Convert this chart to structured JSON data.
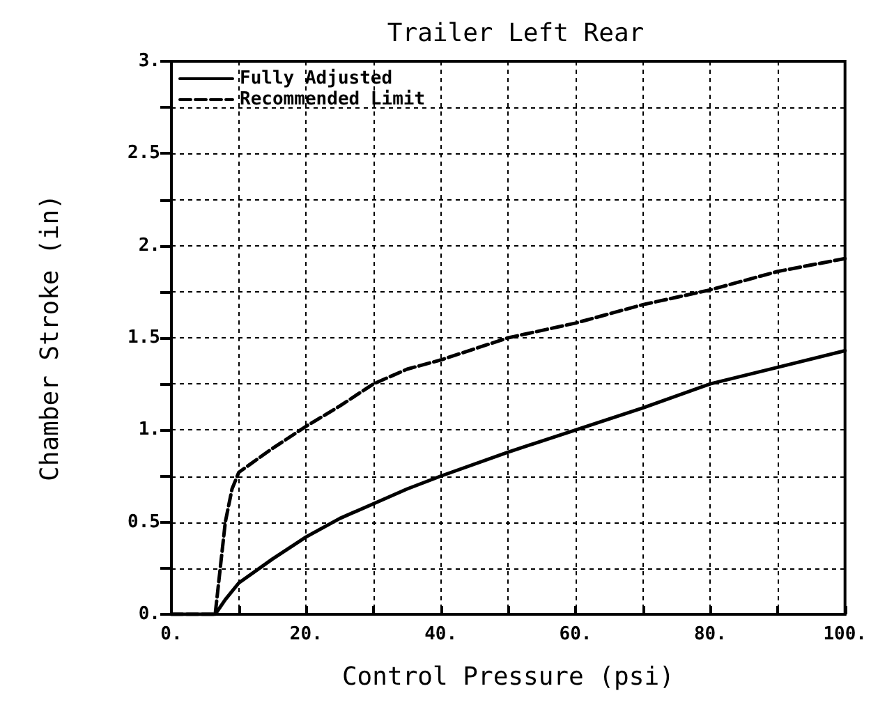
{
  "chart_data": {
    "type": "line",
    "title": "Trailer Left Rear",
    "xlabel": "Control Pressure (psi)",
    "ylabel": "Chamber Stroke (in)",
    "series": [
      {
        "name": "Fully Adjusted",
        "color": "#000000",
        "line_style": "solid",
        "x": [
          0,
          5,
          6.5,
          8,
          10,
          15,
          20,
          25,
          30,
          35,
          40,
          50,
          60,
          70,
          80,
          90,
          100
        ],
        "values": [
          0,
          0,
          0,
          0.08,
          0.17,
          0.3,
          0.42,
          0.52,
          0.6,
          0.68,
          0.75,
          0.88,
          1.0,
          1.12,
          1.25,
          1.34,
          1.43
        ]
      },
      {
        "name": "Recommended Limit",
        "color": "#000000",
        "line_style": "dashed",
        "x": [
          0,
          5,
          6.5,
          8,
          9,
          10,
          15,
          20,
          25,
          30,
          35,
          40,
          50,
          60,
          70,
          80,
          90,
          100
        ],
        "values": [
          0,
          0,
          0,
          0.5,
          0.68,
          0.77,
          0.9,
          1.02,
          1.13,
          1.25,
          1.33,
          1.38,
          1.5,
          1.58,
          1.68,
          1.76,
          1.86,
          1.93
        ]
      }
    ],
    "xlim": [
      0,
      100
    ],
    "ylim": [
      0,
      3
    ],
    "xticks": [
      {
        "value": 0,
        "label": "0."
      },
      {
        "value": 10,
        "label": null
      },
      {
        "value": 20,
        "label": "20."
      },
      {
        "value": 30,
        "label": null
      },
      {
        "value": 40,
        "label": "40."
      },
      {
        "value": 50,
        "label": null
      },
      {
        "value": 60,
        "label": "60."
      },
      {
        "value": 70,
        "label": null
      },
      {
        "value": 80,
        "label": "80."
      },
      {
        "value": 90,
        "label": null
      },
      {
        "value": 100,
        "label": "100."
      }
    ],
    "yticks": [
      {
        "value": 0,
        "label": "0."
      },
      {
        "value": 0.25,
        "label": null
      },
      {
        "value": 0.5,
        "label": "0.5"
      },
      {
        "value": 0.75,
        "label": null
      },
      {
        "value": 1,
        "label": "1."
      },
      {
        "value": 1.25,
        "label": null
      },
      {
        "value": 1.5,
        "label": "1.5"
      },
      {
        "value": 1.75,
        "label": null
      },
      {
        "value": 2,
        "label": "2."
      },
      {
        "value": 2.25,
        "label": null
      },
      {
        "value": 2.5,
        "label": "2.5"
      },
      {
        "value": 2.75,
        "label": null
      },
      {
        "value": 3,
        "label": "3."
      }
    ],
    "grid": true,
    "legend": "top left",
    "marker": "none"
  }
}
